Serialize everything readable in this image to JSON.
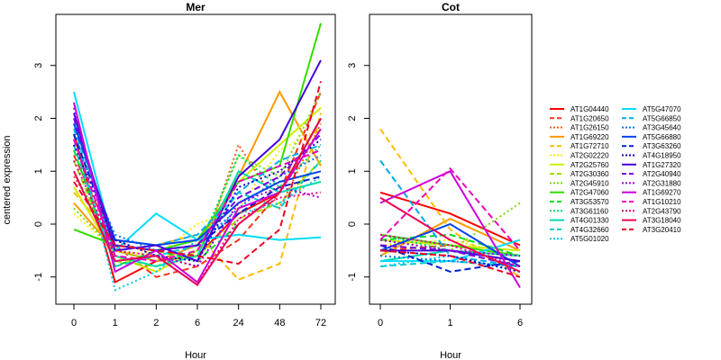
{
  "chart_data": {
    "type": "line",
    "ylabel": "centered expression",
    "legend_position": "right",
    "panels": [
      {
        "title": "Mer",
        "xlabel": "Hour",
        "categories": [
          "0",
          "1",
          "2",
          "6",
          "24",
          "48",
          "72"
        ],
        "yticks": [
          "-1",
          "0",
          "1",
          "2",
          "3"
        ],
        "ylim": [
          -1.5,
          3.9
        ]
      },
      {
        "title": "Cot",
        "xlabel": "Hour",
        "categories": [
          "0",
          "1",
          "6"
        ],
        "yticks": [
          "-1",
          "0",
          "1",
          "2",
          "3"
        ],
        "ylim": [
          -1.5,
          3.9
        ]
      }
    ],
    "series": [
      {
        "name": "AT1G04440",
        "color": "#FF0000",
        "dash": "solid",
        "mer": [
          1.7,
          -1.1,
          -0.7,
          -0.6,
          0.2,
          0.6,
          2.0
        ],
        "cot": [
          0.6,
          0.2,
          -0.4
        ]
      },
      {
        "name": "AT1G20650",
        "color": "#F8331A",
        "dash": "dashed",
        "mer": [
          1.3,
          -0.4,
          -1.0,
          -0.8,
          -0.3,
          0.6,
          2.5
        ],
        "cot": [
          -0.5,
          -0.4,
          -0.6
        ]
      },
      {
        "name": "AT1G26150",
        "color": "#F55A1A",
        "dash": "dotted",
        "mer": [
          0.9,
          -0.3,
          -0.6,
          -0.8,
          1.5,
          0.3,
          1.9
        ],
        "cot": [
          -0.3,
          -0.5,
          -0.7
        ]
      },
      {
        "name": "AT1G69220",
        "color": "#FF9900",
        "dash": "solid",
        "mer": [
          0.4,
          -0.5,
          -0.7,
          -0.4,
          0.9,
          2.5,
          1.1
        ],
        "cot": [
          -0.6,
          0.1,
          -0.5
        ]
      },
      {
        "name": "AT1G72710",
        "color": "#FFBB00",
        "dash": "dashed",
        "mer": [
          0.6,
          -0.3,
          -0.4,
          -0.2,
          -1.05,
          -0.75,
          2.1
        ],
        "cot": [
          1.8,
          -0.1,
          -1.0
        ]
      },
      {
        "name": "AT2G02220",
        "color": "#FFEE00",
        "dash": "dotted",
        "mer": [
          0.2,
          -0.5,
          -0.6,
          0.0,
          0.3,
          1.4,
          1.8
        ],
        "cot": [
          -0.4,
          -0.3,
          -0.6
        ]
      },
      {
        "name": "AT2G25760",
        "color": "#CCEE00",
        "dash": "solid",
        "mer": [
          0.7,
          -0.6,
          -0.9,
          -0.5,
          0.8,
          1.5,
          2.2
        ],
        "cot": [
          -0.3,
          -0.4,
          -0.5
        ]
      },
      {
        "name": "AT2G30360",
        "color": "#99DD00",
        "dash": "dashed",
        "mer": [
          1.2,
          -0.7,
          -0.8,
          -0.6,
          0.1,
          0.4,
          1.2
        ],
        "cot": [
          -0.4,
          -0.5,
          -0.6
        ]
      },
      {
        "name": "AT2G45910",
        "color": "#77DD00",
        "dash": "dotted",
        "mer": [
          0.3,
          -0.5,
          -0.7,
          -0.6,
          1.3,
          0.9,
          2.5
        ],
        "cot": [
          -0.3,
          -0.5,
          0.4
        ]
      },
      {
        "name": "AT2G47060",
        "color": "#33DD00",
        "dash": "solid",
        "mer": [
          -0.1,
          -0.4,
          -0.5,
          -0.3,
          0.8,
          1.1,
          3.8
        ],
        "cot": [
          -0.2,
          -0.4,
          -0.6
        ]
      },
      {
        "name": "AT3G53570",
        "color": "#00DD22",
        "dash": "dashed",
        "mer": [
          1.4,
          -0.8,
          -0.5,
          -0.7,
          0.0,
          0.6,
          2.0
        ],
        "cot": [
          -0.3,
          -0.2,
          -0.6
        ]
      },
      {
        "name": "AT3G61160",
        "color": "#00DD66",
        "dash": "dotted",
        "mer": [
          1.0,
          -0.6,
          -0.8,
          -0.5,
          1.3,
          0.7,
          1.5
        ],
        "cot": [
          -0.2,
          -0.5,
          -0.7
        ]
      },
      {
        "name": "AT4G01330",
        "color": "#00DDAA",
        "dash": "solid",
        "mer": [
          2.0,
          -0.6,
          -0.8,
          -0.6,
          1.0,
          0.6,
          0.8
        ],
        "cot": [
          -0.7,
          -0.5,
          -0.6
        ]
      },
      {
        "name": "AT4G32660",
        "color": "#00CCCC",
        "dash": "dashed",
        "mer": [
          1.5,
          -0.8,
          -0.6,
          -0.4,
          0.6,
          0.3,
          1.2
        ],
        "cot": [
          -0.8,
          -0.7,
          -0.8
        ]
      },
      {
        "name": "AT5G01020",
        "color": "#00CCEE",
        "dash": "dotted",
        "mer": [
          1.9,
          -1.25,
          -0.9,
          -0.3,
          0.2,
          0.4,
          0.9
        ],
        "cot": [
          -0.8,
          -0.6,
          -0.9
        ]
      },
      {
        "name": "AT5G47070",
        "color": "#00DDFF",
        "dash": "solid",
        "mer": [
          2.5,
          -0.5,
          0.2,
          -0.3,
          -0.2,
          -0.3,
          -0.25
        ],
        "cot": [
          -0.7,
          -0.7,
          -0.3
        ]
      },
      {
        "name": "AT5G66850",
        "color": "#00AAEE",
        "dash": "dashed",
        "mer": [
          1.8,
          -0.3,
          -0.4,
          -0.2,
          0.6,
          1.2,
          1.5
        ],
        "cot": [
          1.2,
          -0.6,
          -0.8
        ]
      },
      {
        "name": "AT3G45640",
        "color": "#0077EE",
        "dash": "dotted",
        "mer": [
          1.6,
          -0.2,
          -0.5,
          -0.4,
          0.3,
          0.9,
          1.3
        ],
        "cot": [
          -0.6,
          -0.7,
          -0.8
        ]
      },
      {
        "name": "AT5G66880",
        "color": "#0044EE",
        "dash": "solid",
        "mer": [
          1.9,
          -0.3,
          -0.4,
          -0.3,
          0.4,
          0.8,
          1.0
        ],
        "cot": [
          -0.5,
          0.0,
          -0.8
        ]
      },
      {
        "name": "AT3G63260",
        "color": "#0022CC",
        "dash": "dashed",
        "mer": [
          1.7,
          -0.4,
          -0.5,
          -0.4,
          0.2,
          0.7,
          0.9
        ],
        "cot": [
          -0.4,
          -0.9,
          -0.7
        ]
      },
      {
        "name": "AT4G18950",
        "color": "#1100CC",
        "dash": "dotted",
        "mer": [
          1.5,
          -0.3,
          -0.6,
          -0.7,
          0.7,
          1.0,
          1.6
        ],
        "cot": [
          -0.5,
          -0.6,
          -0.9
        ]
      },
      {
        "name": "AT1G27320",
        "color": "#4400DD",
        "dash": "solid",
        "mer": [
          2.1,
          -0.5,
          -0.4,
          -0.7,
          0.9,
          1.6,
          3.1
        ],
        "cot": [
          -0.5,
          -0.5,
          -0.7
        ]
      },
      {
        "name": "AT2G40940",
        "color": "#7700DD",
        "dash": "dashed",
        "mer": [
          2.0,
          -0.4,
          -0.5,
          -0.4,
          0.5,
          0.9,
          1.7
        ],
        "cot": [
          -0.4,
          -0.5,
          -0.8
        ]
      },
      {
        "name": "AT2G31880",
        "color": "#9900DD",
        "dash": "dotted",
        "mer": [
          2.2,
          -0.7,
          -0.6,
          -0.8,
          0.4,
          0.7,
          0.5
        ],
        "cot": [
          -0.3,
          -0.5,
          -0.6
        ]
      },
      {
        "name": "AT1G69270",
        "color": "#CC00DD",
        "dash": "solid",
        "mer": [
          2.3,
          -0.9,
          -0.5,
          -1.1,
          0.3,
          0.6,
          1.8
        ],
        "cot": [
          0.4,
          1.0,
          -1.2
        ]
      },
      {
        "name": "AT1G10210",
        "color": "#EE00BB",
        "dash": "dashed",
        "mer": [
          1.6,
          -0.6,
          -0.7,
          -0.5,
          0.8,
          1.1,
          1.4
        ],
        "cot": [
          -0.3,
          1.05,
          -0.5
        ]
      },
      {
        "name": "AT2G43790",
        "color": "#EE0088",
        "dash": "dotted",
        "mer": [
          1.2,
          -0.5,
          -0.6,
          -1.15,
          0.1,
          0.5,
          0.6
        ],
        "cot": [
          -0.2,
          -0.4,
          -0.8
        ]
      },
      {
        "name": "AT3G18040",
        "color": "#EE0055",
        "dash": "solid",
        "mer": [
          1.0,
          -0.7,
          -0.6,
          -1.15,
          0.0,
          0.6,
          2.0
        ],
        "cot": [
          0.5,
          -0.3,
          -0.9
        ]
      },
      {
        "name": "AT3G20410",
        "color": "#EE0022",
        "dash": "dashed",
        "mer": [
          0.8,
          -0.4,
          -0.5,
          -0.6,
          -0.75,
          -0.1,
          2.7
        ],
        "cot": [
          -0.5,
          -0.6,
          -1.0
        ]
      }
    ]
  }
}
